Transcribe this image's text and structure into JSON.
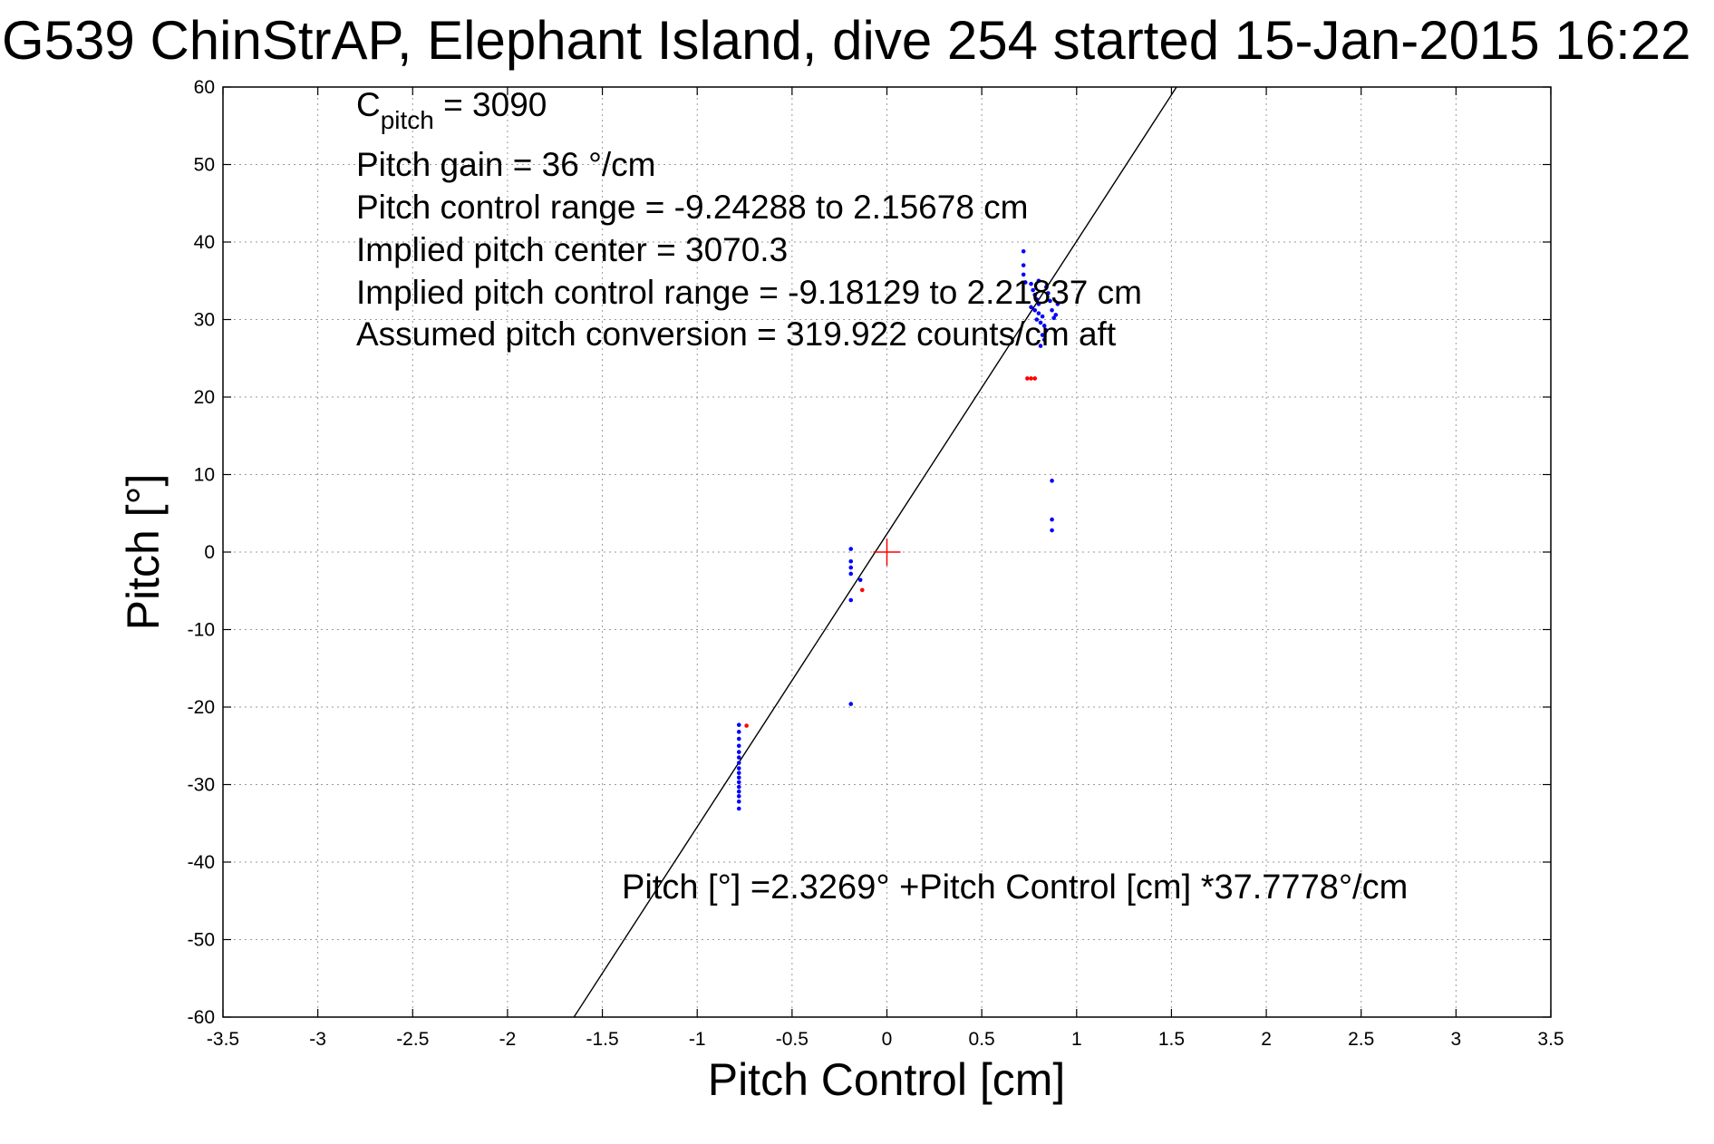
{
  "chart_data": {
    "type": "scatter",
    "title": "G539 ChinStrAP, Elephant Island, dive 254 started 15-Jan-2015 16:22",
    "xlabel": "Pitch Control [cm]",
    "ylabel": "Pitch [°]",
    "xlim": [
      -3.5,
      3.5
    ],
    "ylim": [
      -60,
      60
    ],
    "grid": true,
    "xticks": [
      "-3.5",
      "-3",
      "-2.5",
      "-2",
      "-1.5",
      "-1",
      "-0.5",
      "0",
      "0.5",
      "1",
      "1.5",
      "2",
      "2.5",
      "3",
      "3.5"
    ],
    "yticks": [
      "60",
      "50",
      "40",
      "30",
      "20",
      "10",
      "0",
      "-10",
      "-20",
      "-30",
      "-40",
      "-50",
      "-60"
    ],
    "annotations": {
      "c_pitch_main": "C",
      "c_pitch_sub": "pitch",
      "c_pitch_value": " = 3090",
      "pitch_gain": "Pitch gain = 36 °/cm",
      "pitch_control_range": "Pitch control range = -9.24288 to 2.15678 cm",
      "implied_pitch_center": "Implied pitch center = 3070.3",
      "implied_pitch_control_range": "Implied pitch control range = -9.18129 to 2.21837 cm",
      "assumed_pitch_conversion": "Assumed pitch conversion = 319.922 counts/cm aft",
      "fit_equation": "Pitch [°] =2.3269° +Pitch Control [cm] *37.7778°/cm"
    },
    "fit_line": {
      "intercept": 2.3269,
      "slope": 37.7778
    },
    "center_marker": {
      "x": 0,
      "y": 0,
      "color": "#ff0000"
    },
    "colors": {
      "used_points": "#0000ff",
      "excluded_points": "#ff0000",
      "fit_line": "#000000"
    },
    "series": [
      {
        "color": "#0000ff",
        "points": [
          [
            -0.78,
            -22.3
          ],
          [
            -0.78,
            -23.2
          ],
          [
            -0.78,
            -24.1
          ],
          [
            -0.78,
            -25.0
          ],
          [
            -0.78,
            -25.8
          ],
          [
            -0.78,
            -26.5
          ],
          [
            -0.78,
            -27.2
          ],
          [
            -0.78,
            -27.9
          ],
          [
            -0.78,
            -28.5
          ],
          [
            -0.78,
            -29.1
          ],
          [
            -0.78,
            -29.7
          ],
          [
            -0.78,
            -30.3
          ],
          [
            -0.78,
            -30.9
          ],
          [
            -0.78,
            -31.5
          ],
          [
            -0.78,
            -32.2
          ],
          [
            -0.78,
            -33.1
          ],
          [
            -0.19,
            0.4
          ],
          [
            -0.19,
            -1.2
          ],
          [
            -0.19,
            -2.0
          ],
          [
            -0.19,
            -2.8
          ],
          [
            -0.19,
            -6.2
          ],
          [
            -0.19,
            -19.6
          ],
          [
            -0.14,
            -3.6
          ],
          [
            0.72,
            38.8
          ],
          [
            0.72,
            37.0
          ],
          [
            0.72,
            35.8
          ],
          [
            0.73,
            34.8
          ],
          [
            0.76,
            34.6
          ],
          [
            0.77,
            33.8
          ],
          [
            0.78,
            33.2
          ],
          [
            0.79,
            32.6
          ],
          [
            0.8,
            32.0
          ],
          [
            0.76,
            31.6
          ],
          [
            0.78,
            31.2
          ],
          [
            0.8,
            30.8
          ],
          [
            0.82,
            30.4
          ],
          [
            0.79,
            30.0
          ],
          [
            0.81,
            29.6
          ],
          [
            0.83,
            29.2
          ],
          [
            0.84,
            28.6
          ],
          [
            0.82,
            28.0
          ],
          [
            0.83,
            27.4
          ],
          [
            0.81,
            26.6
          ],
          [
            0.85,
            33.4
          ],
          [
            0.86,
            32.4
          ],
          [
            0.87,
            31.2
          ],
          [
            0.88,
            30.2
          ],
          [
            0.84,
            34.2
          ],
          [
            0.8,
            35.0
          ],
          [
            0.9,
            32.0
          ],
          [
            0.89,
            30.6
          ],
          [
            0.87,
            9.2
          ],
          [
            0.87,
            4.2
          ],
          [
            0.87,
            2.8
          ]
        ]
      },
      {
        "color": "#ff0000",
        "points": [
          [
            -0.74,
            -22.4
          ],
          [
            -0.13,
            -4.9
          ],
          [
            0.74,
            22.4
          ],
          [
            0.76,
            22.4
          ],
          [
            0.78,
            22.4
          ]
        ]
      }
    ]
  }
}
